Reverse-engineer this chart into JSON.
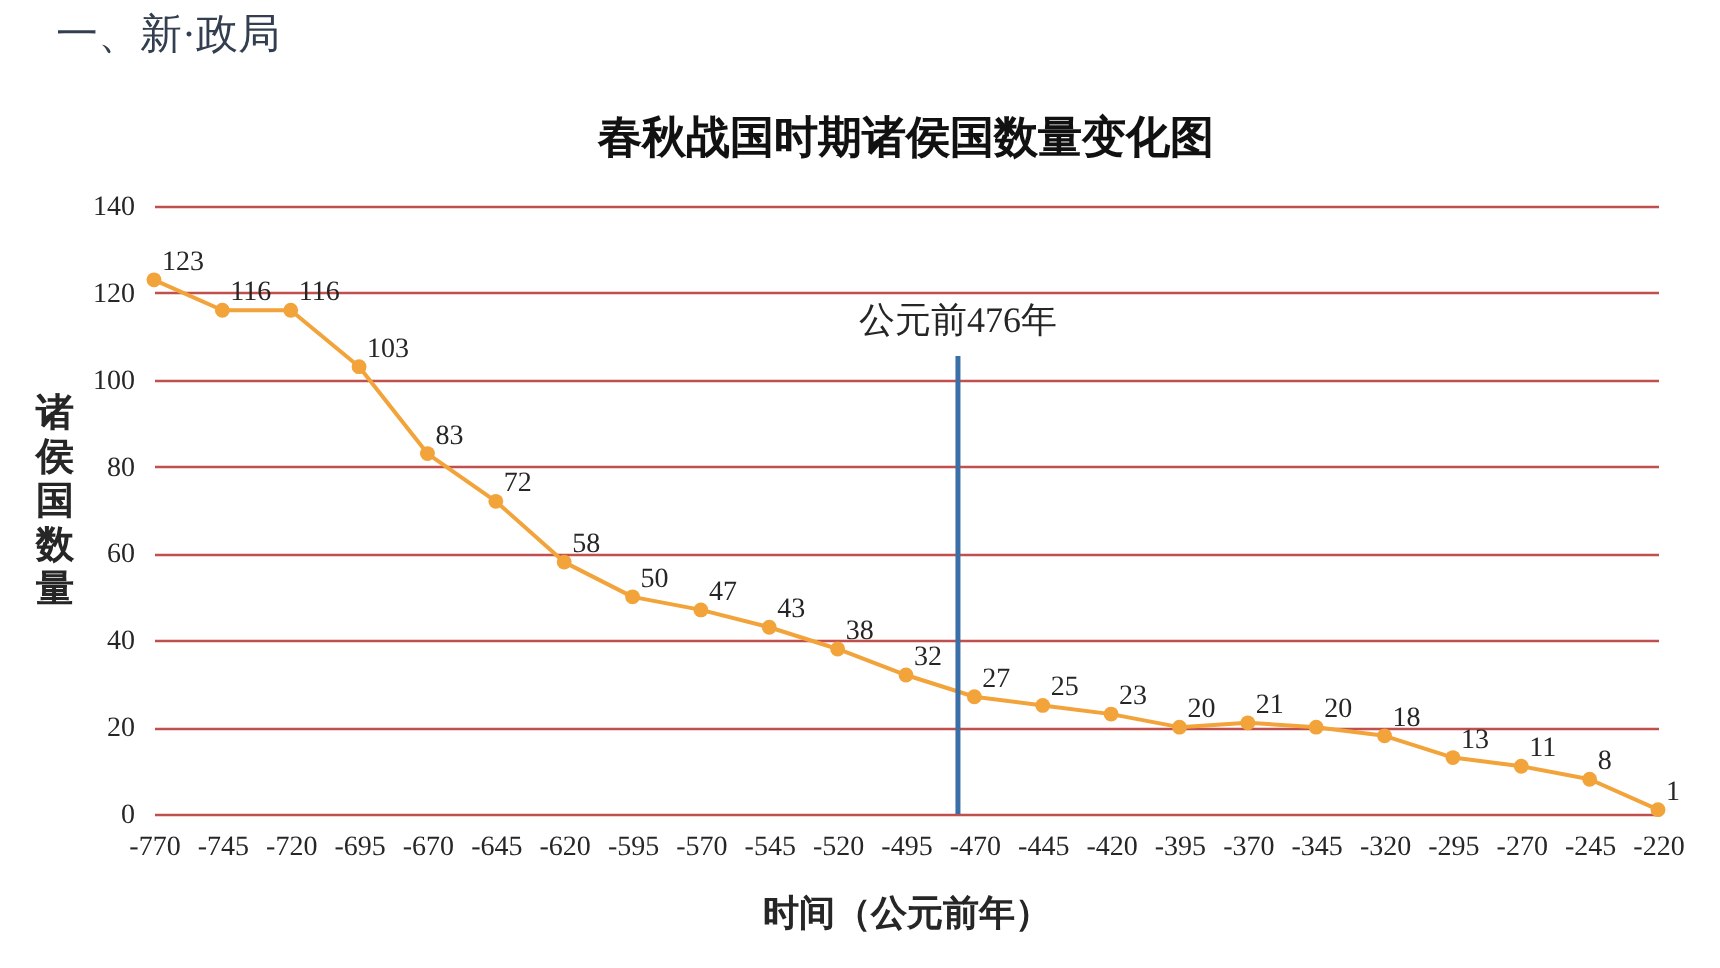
{
  "chart_data": {
    "type": "line",
    "title": "春秋战国时期诸侯国数量变化图",
    "xlabel": "时间（公元前年）",
    "ylabel": "诸侯国数量",
    "annotations": [
      "一、新·政局"
    ],
    "x": [
      -770,
      -745,
      -720,
      -695,
      -670,
      -645,
      -620,
      -595,
      -570,
      -545,
      -520,
      -495,
      -470,
      -445,
      -420,
      -395,
      -370,
      -345,
      -320,
      -295,
      -270,
      -245,
      -220
    ],
    "series": [
      {
        "color": "#f2a33a",
        "values": [
          123,
          116,
          116,
          103,
          83,
          72,
          58,
          50,
          47,
          43,
          38,
          32,
          27,
          25,
          23,
          20,
          21,
          20,
          18,
          13,
          11,
          8,
          1
        ]
      }
    ],
    "xlim": [
      -770,
      -220
    ],
    "xticks": [
      -770,
      -745,
      -720,
      -695,
      -670,
      -645,
      -620,
      -595,
      -570,
      -545,
      -520,
      -495,
      -470,
      -445,
      -420,
      -395,
      -370,
      -345,
      -320,
      -295,
      -270,
      -245,
      -220
    ],
    "ylim": [
      0,
      140
    ],
    "yticks": [
      0,
      20,
      40,
      60,
      80,
      100,
      120,
      140
    ],
    "grid": "y",
    "marker": "circle",
    "line_style": "solid",
    "data_labels": true,
    "ref_lines": [
      {
        "axis": "x",
        "value": -476,
        "label": "公元前476年",
        "color": "#3a6fa8"
      }
    ]
  }
}
